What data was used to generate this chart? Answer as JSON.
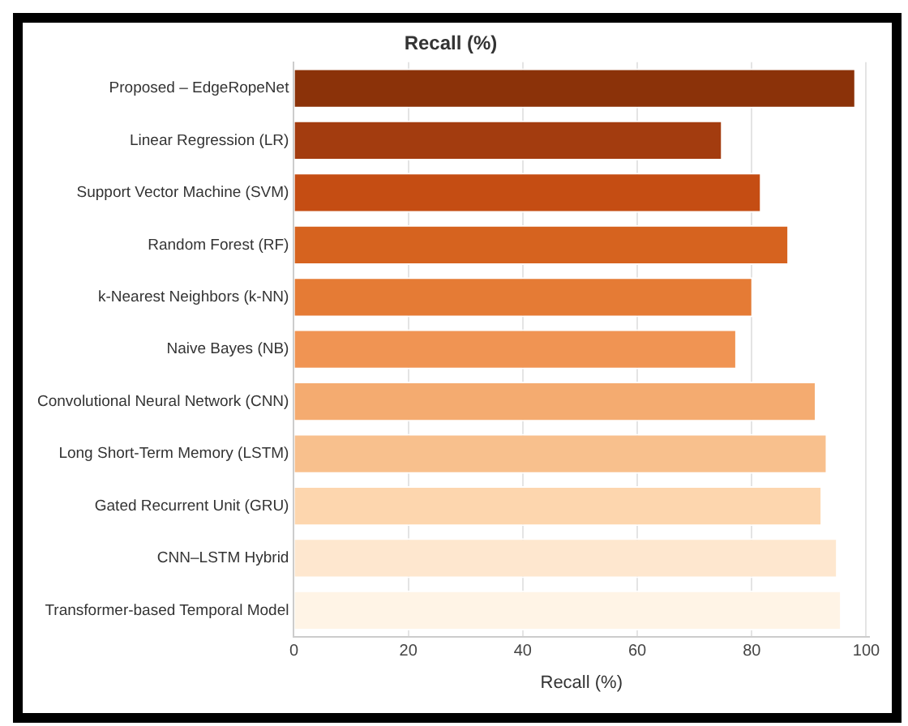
{
  "chart_data": {
    "type": "bar",
    "orientation": "horizontal",
    "title": "Recall (%)",
    "xlabel": "Recall (%)",
    "categories": [
      "Proposed – EdgeRopeNet",
      "Linear Regression (LR)",
      "Support Vector Machine (SVM)",
      "Random Forest (RF)",
      "k-Nearest Neighbors (k-NN)",
      "Naive Bayes (NB)",
      "Convolutional Neural Network (CNN)",
      "Long Short-Term Memory (LSTM)",
      "Gated Recurrent Unit (GRU)",
      "CNN–LSTM Hybrid",
      "Transformer-based Temporal Model"
    ],
    "values": [
      98.2,
      74.9,
      81.7,
      86.5,
      80.2,
      77.4,
      91.3,
      93.2,
      92.3,
      95.0,
      95.7
    ],
    "colors": [
      "#8b3209",
      "#a33c0f",
      "#c54d13",
      "#d6631f",
      "#e57b35",
      "#f09453",
      "#f4ab70",
      "#f8c08d",
      "#fdd6ae",
      "#fee7cf",
      "#fff4e6"
    ],
    "xlim": [
      0,
      100.5
    ],
    "xticks": [
      0,
      20,
      40,
      60,
      80,
      100
    ],
    "grid": "x",
    "legend": false
  }
}
